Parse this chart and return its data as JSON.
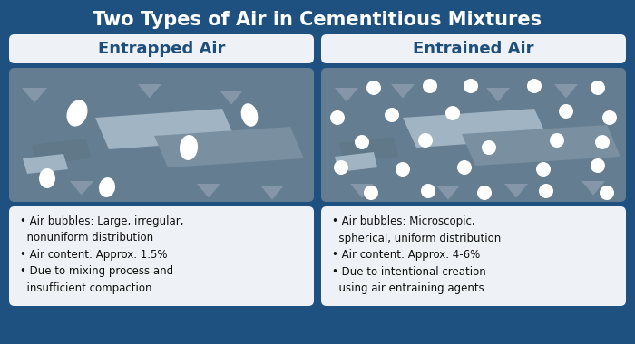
{
  "title": "Two Types of Air in Cementitious Mixtures",
  "title_color": "#FFFFFF",
  "title_fontsize": 15,
  "bg_color": "#1E5080",
  "panel_bg": "#EEF1F5",
  "diagram_bg": "#647D90",
  "left_header": "Entrapped Air",
  "right_header": "Entrained Air",
  "header_color": "#1E4E7A",
  "header_fontsize": 13,
  "left_bullets": "• Air bubbles: Large, irregular,\n  nonuniform distribution\n• Air content: Approx. 1.5%\n• Due to mixing process and\n  insufficient compaction",
  "right_bullets": "• Air bubbles: Microscopic,\n  spherical, uniform distribution\n• Air content: Approx. 4-6%\n• Due to intentional creation\n  using air entraining agents",
  "bullet_fontsize": 8.5,
  "bullet_color": "#111111",
  "tri_color": "#8496A8",
  "slab_light": "#A0B4C4",
  "slab_mid": "#7A90A0",
  "slab_dark": "#607888",
  "white_bubble": "#FFFFFF"
}
